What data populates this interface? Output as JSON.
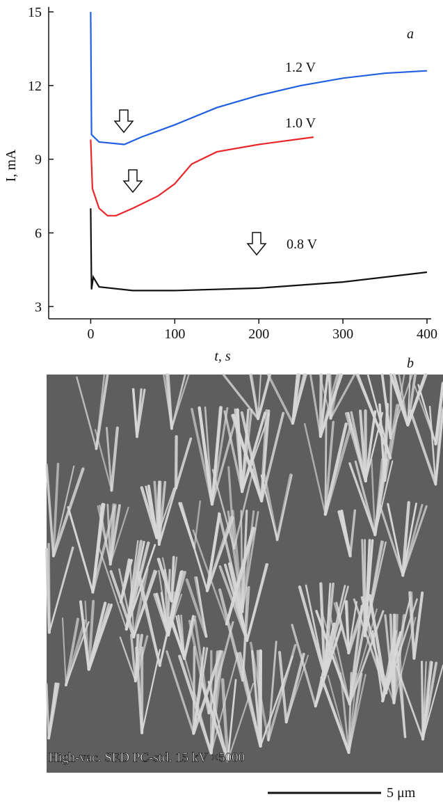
{
  "chart_data": {
    "type": "line",
    "panel_label": "a",
    "xlabel": "t, s",
    "ylabel": "I, mA",
    "xlim": [
      -50,
      405
    ],
    "ylim": [
      2.5,
      15.2
    ],
    "xticks": [
      0,
      100,
      200,
      300,
      400
    ],
    "yticks": [
      3,
      6,
      9,
      12,
      15
    ],
    "series": [
      {
        "name": "1.2 V",
        "color": "#1f5fe0",
        "x": [
          0,
          1,
          10,
          40,
          60,
          100,
          150,
          200,
          250,
          300,
          350,
          400
        ],
        "values": [
          15,
          10,
          9.7,
          9.6,
          9.9,
          10.4,
          11.1,
          11.6,
          12.0,
          12.3,
          12.5,
          12.6
        ]
      },
      {
        "name": "1.0 V",
        "color": "#e8262a",
        "x": [
          0,
          2,
          10,
          20,
          30,
          50,
          80,
          100,
          120,
          150,
          200,
          265
        ],
        "values": [
          9.8,
          7.8,
          7.0,
          6.7,
          6.7,
          7.0,
          7.5,
          8.0,
          8.8,
          9.3,
          9.6,
          9.9
        ]
      },
      {
        "name": "0.8 V",
        "color": "#111111",
        "x": [
          0,
          1,
          3,
          10,
          50,
          100,
          200,
          300,
          400
        ],
        "values": [
          7.0,
          3.7,
          4.2,
          3.8,
          3.65,
          3.65,
          3.75,
          4.0,
          4.4
        ]
      }
    ]
  },
  "image": {
    "panel_label": "b",
    "info": "High-vac.  SED  PC-std.    15 kV      ×5000",
    "scale_bar": "5 μm"
  }
}
